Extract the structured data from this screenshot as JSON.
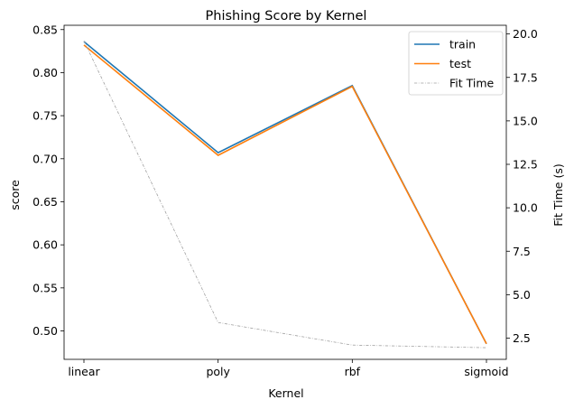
{
  "chart_data": {
    "type": "line",
    "title": "Phishing Score by Kernel",
    "xlabel": "Kernel",
    "ylabel": "score",
    "y2label": "Fit Time (s)",
    "categories": [
      "linear",
      "poly",
      "rbf",
      "sigmoid"
    ],
    "ylim": [
      0.467,
      0.855
    ],
    "yticks": [
      0.5,
      0.55,
      0.6,
      0.65,
      0.7,
      0.75,
      0.8,
      0.85
    ],
    "ytick_labels": [
      "0.50",
      "0.55",
      "0.60",
      "0.65",
      "0.70",
      "0.75",
      "0.80",
      "0.85"
    ],
    "y2lim": [
      1.28,
      20.5
    ],
    "y2ticks": [
      2.5,
      5.0,
      7.5,
      10.0,
      12.5,
      15.0,
      17.5,
      20.0
    ],
    "y2tick_labels": [
      "2.5",
      "5.0",
      "7.5",
      "10.0",
      "12.5",
      "15.0",
      "17.5",
      "20.0"
    ],
    "series": [
      {
        "name": "train",
        "axis": "left",
        "color": "#1f77b4",
        "style": "solid",
        "values": [
          0.836,
          0.707,
          0.785,
          0.485
        ]
      },
      {
        "name": "test",
        "axis": "left",
        "color": "#ff7f0e",
        "style": "solid",
        "values": [
          0.832,
          0.704,
          0.784,
          0.485
        ]
      },
      {
        "name": "Fit Time",
        "axis": "right",
        "color": "#a0a0a0",
        "style": "dashdot",
        "values": [
          19.6,
          3.4,
          2.1,
          1.95
        ]
      }
    ],
    "legend_position": "top-right",
    "grid": false
  }
}
